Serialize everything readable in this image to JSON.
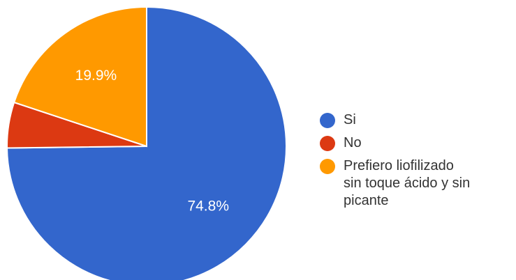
{
  "chart_data": {
    "type": "pie",
    "categories": [
      "Si",
      "No",
      "Prefiero liofilizado\nsin toque ácido y sin\npicante"
    ],
    "values": [
      74.8,
      5.3,
      19.9
    ],
    "data_labels": [
      "74.8%",
      "",
      "19.9%"
    ],
    "colors": [
      "#3366CC",
      "#DC3912",
      "#FF9900"
    ],
    "legend_position": "right",
    "start_angle": "top, clockwise"
  }
}
